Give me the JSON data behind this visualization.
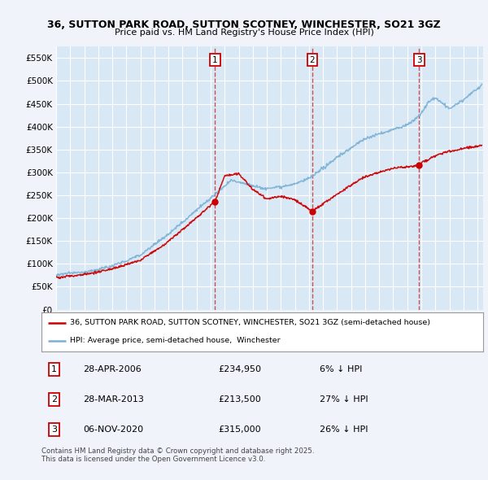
{
  "title_line1": "36, SUTTON PARK ROAD, SUTTON SCOTNEY, WINCHESTER, SO21 3GZ",
  "title_line2": "Price paid vs. HM Land Registry's House Price Index (HPI)",
  "background_color": "#f0f4fa",
  "plot_bg_color": "#d8e8f5",
  "legend_label_red": "36, SUTTON PARK ROAD, SUTTON SCOTNEY, WINCHESTER, SO21 3GZ (semi-detached house)",
  "legend_label_blue": "HPI: Average price, semi-detached house,  Winchester",
  "sale_dates": [
    "28-APR-2006",
    "28-MAR-2013",
    "06-NOV-2020"
  ],
  "sale_prices": [
    234950,
    213500,
    315000
  ],
  "sale_labels": [
    "1",
    "2",
    "3"
  ],
  "sale_pct": [
    "6% ↓ HPI",
    "27% ↓ HPI",
    "26% ↓ HPI"
  ],
  "vline_x": [
    2006.32,
    2013.24,
    2020.85
  ],
  "footer_text": "Contains HM Land Registry data © Crown copyright and database right 2025.\nThis data is licensed under the Open Government Licence v3.0.",
  "ylim": [
    0,
    575000
  ],
  "yticks": [
    0,
    50000,
    100000,
    150000,
    200000,
    250000,
    300000,
    350000,
    400000,
    450000,
    500000,
    550000
  ],
  "red_color": "#cc0000",
  "blue_color": "#7ab0d4",
  "grid_color": "#ffffff"
}
